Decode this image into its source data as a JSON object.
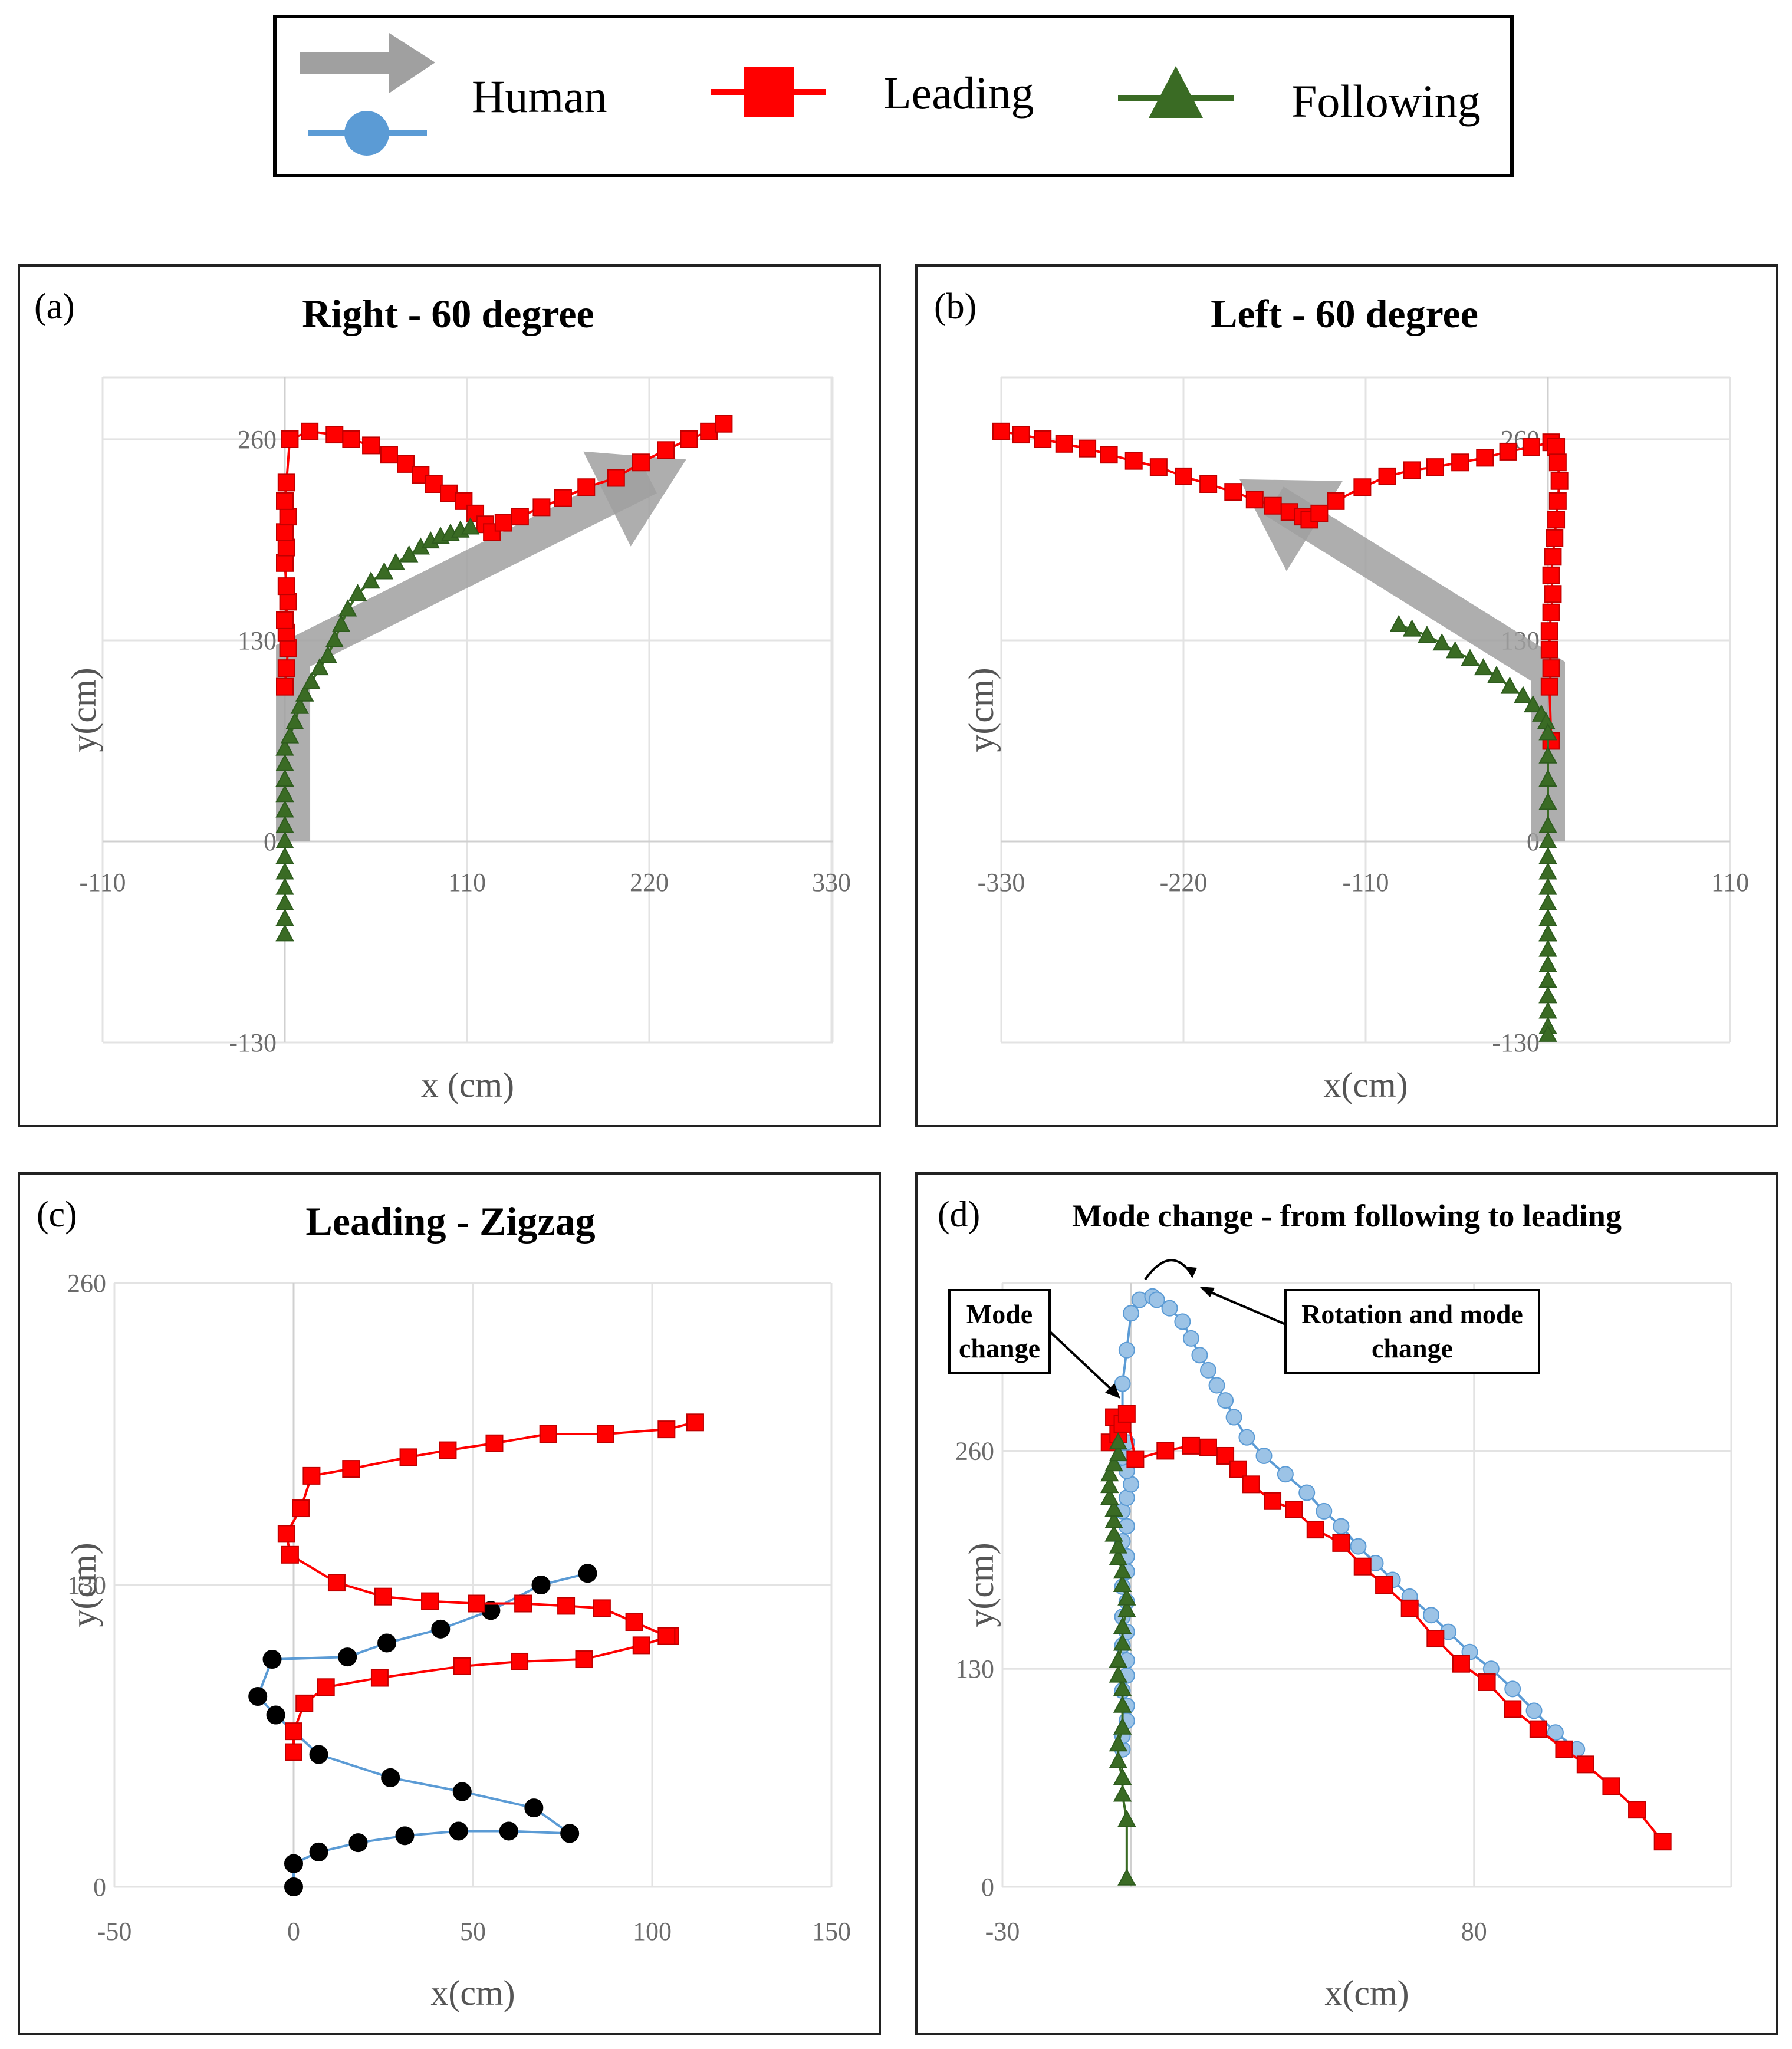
{
  "legend": {
    "items": [
      {
        "label": "Human",
        "icon": "gray-arrow-and-blue-circle-line"
      },
      {
        "label": "Leading",
        "icon": "red-square-line"
      },
      {
        "label": "Following",
        "icon": "green-triangle-line"
      }
    ]
  },
  "colors": {
    "leading": "#ff0000",
    "leading_edge": "#c00000",
    "following": "#3a6b24",
    "following_edge": "#2e5c1e",
    "human_line": "#5b9bd5",
    "human_marker": "#5b9bd5",
    "human_marker_d": "#9cc3e6",
    "human_arrow": "#a0a0a0"
  },
  "chart_data": [
    {
      "id": "a",
      "label": "(a)",
      "type": "scatter",
      "title": "Right - 60 degree",
      "xlabel": "x (cm)",
      "ylabel": "y(cm)",
      "xlim": [
        -110,
        330
      ],
      "ylim": [
        -130,
        300
      ],
      "xticks": [
        -110,
        110,
        220,
        330
      ],
      "yticks": [
        -130,
        0,
        130,
        260
      ],
      "xtick_labels": [
        "-110",
        "110",
        "220",
        "330"
      ],
      "ytick_labels": [
        "-130",
        "0",
        "130",
        "260"
      ],
      "human_arrow": [
        [
          5,
          0
        ],
        [
          5,
          120
        ],
        [
          220,
          235
        ]
      ],
      "series": [
        {
          "name": "Leading",
          "marker": "square",
          "x": [
            0,
            1,
            2,
            1,
            0,
            2,
            1,
            0,
            1,
            0,
            2,
            0,
            1,
            3,
            15,
            30,
            40,
            52,
            63,
            73,
            82,
            90,
            99,
            108,
            115,
            121,
            125,
            132,
            142,
            155,
            168,
            182,
            200,
            215,
            230,
            244,
            256,
            265
          ],
          "y": [
            100,
            112,
            125,
            135,
            143,
            155,
            165,
            180,
            190,
            200,
            210,
            220,
            232,
            260,
            265,
            263,
            260,
            256,
            250,
            244,
            237,
            231,
            225,
            220,
            212,
            205,
            200,
            206,
            210,
            216,
            222,
            229,
            235,
            245,
            253,
            260,
            265,
            270
          ]
        },
        {
          "name": "Following",
          "marker": "triangle",
          "x": [
            0,
            0,
            0,
            0,
            0,
            0,
            0,
            0,
            0,
            0,
            0,
            0,
            0,
            3,
            6,
            9,
            12,
            16,
            21,
            26,
            30,
            34,
            38,
            44,
            52,
            60,
            67,
            75,
            82,
            88,
            94,
            100,
            106,
            112
          ],
          "y": [
            -60,
            -50,
            -40,
            -30,
            -20,
            -10,
            0,
            10,
            20,
            30,
            40,
            50,
            60,
            68,
            77,
            87,
            95,
            103,
            112,
            120,
            130,
            140,
            150,
            160,
            168,
            174,
            180,
            185,
            190,
            194,
            197,
            199,
            201,
            203
          ]
        }
      ]
    },
    {
      "id": "b",
      "label": "(b)",
      "type": "scatter",
      "title": "Left - 60 degree",
      "xlabel": "x(cm)",
      "ylabel": "y(cm)",
      "xlim": [
        -330,
        110
      ],
      "ylim": [
        -130,
        300
      ],
      "xticks": [
        -330,
        -220,
        -110,
        110
      ],
      "yticks": [
        -130,
        0,
        130,
        260
      ],
      "xtick_labels": [
        "-330",
        "-220",
        "-110",
        "110"
      ],
      "ytick_labels": [
        "-130",
        "0",
        "130",
        "260"
      ],
      "human_arrow": [
        [
          0,
          0
        ],
        [
          0,
          110
        ],
        [
          -165,
          220
        ]
      ],
      "series": [
        {
          "name": "Leading",
          "marker": "square",
          "x": [
            -330,
            -318,
            -305,
            -292,
            -278,
            -265,
            -250,
            -235,
            -220,
            -205,
            -190,
            -177,
            -166,
            -156,
            -148,
            -144,
            -138,
            -128,
            -112,
            -97,
            -82,
            -68,
            -53,
            -38,
            -24,
            -10,
            2,
            5,
            6,
            7,
            6,
            5,
            4,
            3,
            2,
            3,
            2,
            1,
            1,
            2,
            1,
            2
          ],
          "y": [
            265,
            263,
            260,
            257,
            254,
            250,
            246,
            242,
            236,
            231,
            226,
            221,
            217,
            213,
            210,
            208,
            212,
            220,
            229,
            236,
            240,
            242,
            245,
            248,
            252,
            255,
            258,
            255,
            245,
            233,
            220,
            208,
            196,
            184,
            172,
            160,
            148,
            136,
            124,
            112,
            100,
            65
          ]
        },
        {
          "name": "Following",
          "marker": "triangle",
          "x": [
            -90,
            -82,
            -73,
            -64,
            -56,
            -47,
            -39,
            -31,
            -23,
            -15,
            -9,
            -4,
            -1,
            0,
            0,
            0,
            0,
            0,
            0,
            0,
            0,
            0,
            0,
            0,
            0,
            0,
            0,
            0,
            0,
            0,
            0,
            0,
            0,
            0,
            0
          ],
          "y": [
            140,
            137,
            133,
            128,
            123,
            118,
            112,
            107,
            100,
            94,
            88,
            82,
            77,
            70,
            55,
            40,
            25,
            10,
            0,
            -10,
            -20,
            -30,
            -40,
            -50,
            -60,
            -70,
            -80,
            -90,
            -100,
            -110,
            -120,
            -125,
            -100,
            -80,
            -60
          ]
        }
      ]
    },
    {
      "id": "c",
      "label": "(c)",
      "type": "line",
      "title": "Leading - Zigzag",
      "xlabel": "x(cm)",
      "ylabel": "y(cm)",
      "xlim": [
        -50,
        150
      ],
      "ylim": [
        0,
        260
      ],
      "xticks": [
        -50,
        0,
        50,
        100,
        150
      ],
      "yticks": [
        0,
        130,
        260
      ],
      "xtick_labels": [
        "-50",
        "0",
        "50",
        "100",
        "150"
      ],
      "ytick_labels": [
        "0",
        "130",
        "260"
      ],
      "series": [
        {
          "name": "Human",
          "marker": "circle",
          "x": [
            0,
            0,
            7,
            18,
            31,
            46,
            60,
            77,
            67,
            47,
            27,
            7,
            -5,
            -10,
            -6,
            15,
            26,
            41,
            55,
            69,
            82
          ],
          "y": [
            0,
            10,
            15,
            19,
            22,
            24,
            24,
            23,
            34,
            41,
            47,
            57,
            74,
            82,
            98,
            99,
            105,
            111,
            119,
            130,
            135
          ]
        },
        {
          "name": "Leading",
          "marker": "square",
          "x": [
            0,
            0,
            3,
            9,
            24,
            47,
            63,
            81,
            97,
            105,
            104,
            95,
            86,
            76,
            64,
            51,
            38,
            25,
            12,
            -1,
            -2,
            2,
            5,
            16,
            32,
            43,
            56,
            71,
            87,
            104,
            112
          ],
          "y": [
            58,
            67,
            79,
            86,
            90,
            95,
            97,
            98,
            104,
            108,
            108,
            114,
            120,
            121,
            122,
            122,
            123,
            125,
            131,
            143,
            152,
            163,
            177,
            180,
            185,
            188,
            191,
            195,
            195,
            197,
            200
          ]
        }
      ]
    },
    {
      "id": "d",
      "label": "(d)",
      "type": "line",
      "title": "Mode change - from following to leading",
      "xlabel": "x(cm)",
      "ylabel": "y(cm)",
      "xlim": [
        -30,
        140
      ],
      "ylim": [
        0,
        360
      ],
      "xticks": [
        -30,
        80
      ],
      "yticks": [
        0,
        130,
        260
      ],
      "xtick_labels": [
        "-30",
        "80"
      ],
      "ytick_labels": [
        "0",
        "130",
        "260"
      ],
      "annotations": [
        {
          "text": [
            "Mode",
            "change"
          ]
        },
        {
          "text": [
            "Rotation and mode",
            "change"
          ]
        }
      ],
      "series": [
        {
          "name": "Human",
          "marker": "circle",
          "x": [
            -2,
            -2,
            -1,
            -1,
            -2,
            -1,
            -1,
            -2,
            -1,
            -2,
            -1,
            -2,
            -1,
            -1,
            -2,
            -1,
            -2,
            -1,
            0,
            -1,
            -2,
            -1,
            -2,
            -2,
            -1,
            0,
            2,
            5,
            6,
            9,
            12,
            14,
            16,
            18,
            20,
            22,
            24,
            27,
            31,
            36,
            41,
            45,
            49,
            53,
            57,
            61,
            65,
            70,
            74,
            79,
            84,
            89,
            94,
            99,
            104
          ],
          "y": [
            82,
            90,
            99,
            108,
            117,
            126,
            135,
            144,
            152,
            161,
            170,
            179,
            188,
            197,
            206,
            215,
            224,
            232,
            240,
            248,
            256,
            265,
            280,
            300,
            320,
            342,
            350,
            352,
            350,
            345,
            337,
            327,
            317,
            308,
            299,
            290,
            280,
            268,
            257,
            246,
            235,
            224,
            215,
            203,
            193,
            183,
            173,
            162,
            152,
            140,
            130,
            118,
            105,
            92,
            82
          ]
        },
        {
          "name": "Leading",
          "marker": "square",
          "x": [
            -5,
            -3,
            -4,
            -2,
            -1,
            1,
            8,
            14,
            18,
            22,
            25,
            28,
            33,
            38,
            43,
            49,
            54,
            59,
            65,
            71,
            77,
            83,
            89,
            95,
            101,
            106,
            112,
            118,
            124
          ],
          "y": [
            265,
            270,
            280,
            276,
            282,
            255,
            260,
            263,
            262,
            257,
            249,
            240,
            230,
            225,
            213,
            205,
            191,
            180,
            166,
            148,
            133,
            122,
            106,
            94,
            82,
            73,
            60,
            46,
            27
          ]
        },
        {
          "name": "Following",
          "marker": "triangle",
          "x": [
            -1,
            -1,
            -2,
            -2,
            -3,
            -3,
            -2,
            -2,
            -2,
            -3,
            -3,
            -2,
            -2,
            -1,
            -1,
            -2,
            -2,
            -3,
            -3,
            -4,
            -4,
            -4,
            -5,
            -5,
            -5,
            -4,
            -3,
            -3
          ],
          "y": [
            5,
            40,
            55,
            65,
            75,
            85,
            95,
            108,
            118,
            126,
            135,
            145,
            155,
            165,
            172,
            180,
            188,
            196,
            203,
            210,
            218,
            225,
            232,
            239,
            246,
            252,
            258,
            265
          ]
        }
      ]
    }
  ]
}
